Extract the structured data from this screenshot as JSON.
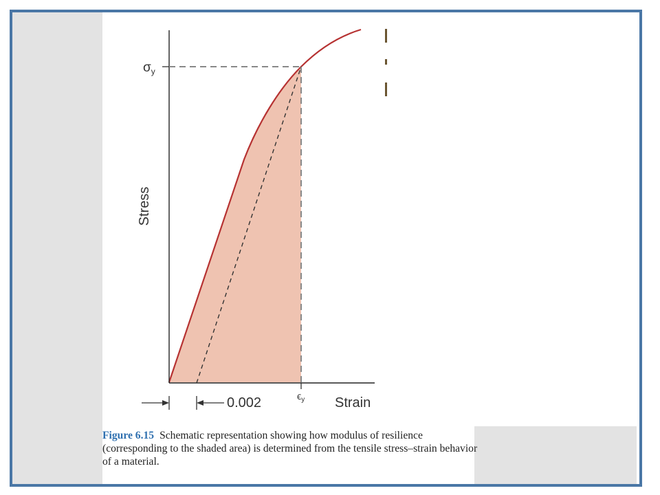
{
  "diagram": {
    "y_axis_label": "Stress",
    "x_axis_label": "Strain",
    "yield_stress_label": "σ",
    "yield_stress_subscript": "y",
    "yield_strain_label": "ϵ",
    "yield_strain_subscript": "y",
    "offset_label": "0.002"
  },
  "caption": {
    "figure_label": "Figure 6.15",
    "text": "Schematic representation showing how modulus of resilience (corresponding to the shaded area) is determined from the tensile stress–strain behavior of a material."
  },
  "colors": {
    "frame_border": "#4a77a6",
    "curve": "#b63232",
    "shaded_area": "#efc3b1",
    "figure_label": "#2e6faf"
  }
}
